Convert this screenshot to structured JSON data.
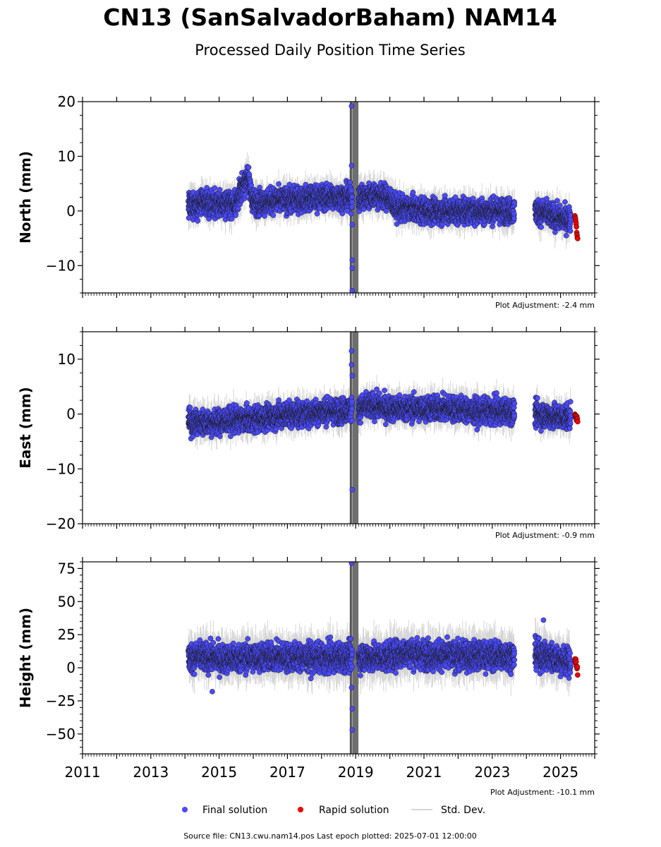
{
  "title": "CN13 (SanSalvadorBaham) NAM14",
  "subtitle": "Processed Daily Position Time Series",
  "footer": "Source file: CN13.cwu.nam14.pos  Last epoch plotted: 2025-07-01 12:00:00",
  "colors": {
    "final": "#4a4aff",
    "rapid": "#ee0000",
    "stddev": "#c8c8c8",
    "gap": "#555555",
    "edge": "#1a1a1a"
  },
  "legend": {
    "final": "Final solution",
    "rapid": "Rapid solution",
    "stddev": "Std. Dev."
  },
  "chart_data": [
    {
      "type": "scatter",
      "ylabel": "North (mm)",
      "plot_adjustment": "Plot Adjustment: -2.4 mm",
      "xlim": [
        2011,
        2026
      ],
      "ylim": [
        -15,
        20
      ],
      "yticks": [
        -10,
        0,
        10,
        20
      ],
      "ytick_labels": [
        "−10",
        "0",
        "10",
        "20"
      ],
      "series": [
        {
          "name": "Final solution",
          "x": [
            2014.1,
            2014.5,
            2015.0,
            2015.5,
            2015.83,
            2016.0,
            2016.5,
            2017.0,
            2017.5,
            2018.0,
            2018.5,
            2018.85,
            2019.2,
            2019.6,
            2019.95,
            2020.2,
            2020.6,
            2021.0,
            2021.5,
            2022.0,
            2022.5,
            2023.0,
            2023.5,
            2023.62,
            2024.3,
            2024.6,
            2025.0,
            2025.3
          ],
          "y": [
            1.0,
            1.5,
            1.2,
            1.5,
            6.5,
            1.5,
            1.8,
            2.0,
            2.2,
            2.5,
            2.5,
            2.5,
            2.5,
            3.0,
            2.5,
            0.5,
            0.5,
            0.0,
            0.0,
            0.0,
            0.0,
            0.0,
            0.0,
            0.0,
            0.0,
            -0.5,
            -1.5,
            -1.5
          ]
        },
        {
          "name": "Rapid solution",
          "x": [
            2025.42,
            2025.45,
            2025.48,
            2025.5
          ],
          "y": [
            -1.0,
            -2.0,
            -4.0,
            -5.0
          ]
        }
      ],
      "outliers": {
        "x": [
          2018.88,
          2018.88,
          2018.9,
          2018.9,
          2018.9,
          2018.9
        ],
        "y": [
          19.2,
          8.3,
          -2.5,
          -9.0,
          -10.5,
          -14.6
        ]
      }
    },
    {
      "type": "scatter",
      "ylabel": "East (mm)",
      "plot_adjustment": "Plot Adjustment: -0.9 mm",
      "xlim": [
        2011,
        2026
      ],
      "ylim": [
        -20,
        15
      ],
      "yticks": [
        -20,
        -10,
        0,
        10
      ],
      "ytick_labels": [
        "−20",
        "−10",
        "0",
        "10"
      ],
      "series": [
        {
          "name": "Final solution",
          "x": [
            2014.1,
            2014.5,
            2015.0,
            2015.5,
            2016.0,
            2016.5,
            2017.0,
            2017.5,
            2018.0,
            2018.5,
            2019.0,
            2019.5,
            2020.0,
            2020.5,
            2021.0,
            2021.5,
            2022.0,
            2022.5,
            2023.0,
            2023.5,
            2024.3,
            2024.8,
            2025.3
          ],
          "y": [
            -1.5,
            -1.5,
            -1.5,
            -1.0,
            -1.0,
            -0.5,
            0.0,
            0.0,
            0.5,
            0.5,
            1.0,
            1.5,
            1.0,
            1.0,
            1.0,
            1.0,
            1.0,
            0.5,
            0.5,
            0.5,
            0.0,
            -0.5,
            -0.5
          ]
        },
        {
          "name": "Rapid solution",
          "x": [
            2025.42,
            2025.45,
            2025.48,
            2025.5
          ],
          "y": [
            0.5,
            -0.5,
            -1.0,
            -1.5
          ]
        }
      ],
      "outliers": {
        "x": [
          2018.88,
          2018.88,
          2018.9,
          2018.9
        ],
        "y": [
          11.5,
          9.0,
          7.0,
          -13.8
        ]
      }
    },
    {
      "type": "scatter",
      "ylabel": "Height (mm)",
      "plot_adjustment": "Plot Adjustment: -10.1 mm",
      "xlim": [
        2011,
        2026
      ],
      "ylim": [
        -65,
        80
      ],
      "yticks": [
        -50,
        -25,
        0,
        25,
        50,
        75
      ],
      "ytick_labels": [
        "−50",
        "−25",
        "0",
        "25",
        "50",
        "75"
      ],
      "xticks": [
        2011,
        2013,
        2015,
        2017,
        2019,
        2021,
        2023,
        2025
      ],
      "xtick_labels": [
        "2011",
        "2013",
        "2015",
        "2017",
        "2019",
        "2021",
        "2023",
        "2025"
      ],
      "series": [
        {
          "name": "Final solution",
          "x": [
            2014.1,
            2014.5,
            2015.0,
            2015.5,
            2016.0,
            2016.5,
            2017.0,
            2017.5,
            2018.0,
            2018.5,
            2019.0,
            2019.5,
            2020.0,
            2020.5,
            2021.0,
            2021.5,
            2022.0,
            2022.5,
            2023.0,
            2023.5,
            2024.3,
            2024.75,
            2025.3
          ],
          "y": [
            8,
            8,
            7,
            7,
            8,
            8,
            8,
            8,
            7,
            8,
            8,
            8,
            8,
            12,
            10,
            9,
            9,
            9,
            9,
            9,
            10,
            8,
            4
          ]
        },
        {
          "name": "Rapid solution",
          "x": [
            2025.42,
            2025.45,
            2025.48,
            2025.5
          ],
          "y": [
            7,
            4,
            1,
            -3
          ]
        }
      ],
      "outliers": {
        "x": [
          2018.88,
          2018.88,
          2018.9,
          2018.9,
          2014.8,
          2024.5
        ],
        "y": [
          79,
          -15,
          -31,
          -47,
          -18,
          36
        ]
      }
    }
  ],
  "data_gaps": [
    [
      2018.9,
      2019.08
    ],
    [
      2023.65,
      2024.25
    ]
  ]
}
